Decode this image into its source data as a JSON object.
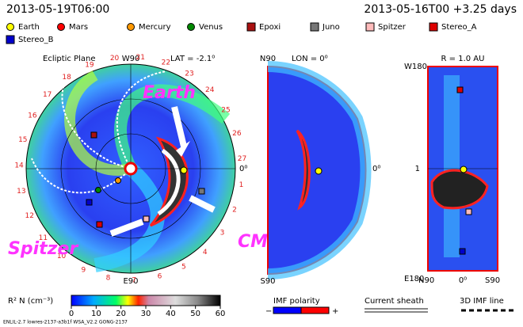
{
  "header": {
    "left": "2013-05-19T06:00",
    "right": "2013-05-16T00 +3.25 days"
  },
  "legend": [
    {
      "label": "Earth",
      "color": "#ffff00",
      "marker": "circle"
    },
    {
      "label": "Mars",
      "color": "#ff0000",
      "marker": "circle"
    },
    {
      "label": "Mercury",
      "color": "#ff9900",
      "marker": "circle"
    },
    {
      "label": "Venus",
      "color": "#008800",
      "marker": "circle"
    },
    {
      "label": "Epoxi",
      "color": "#aa1111",
      "marker": "square"
    },
    {
      "label": "Juno",
      "color": "#777777",
      "marker": "square"
    },
    {
      "label": "Spitzer",
      "color": "#ffbbbb",
      "marker": "square"
    },
    {
      "label": "Stereo_A",
      "color": "#dd0000",
      "marker": "square"
    },
    {
      "label": "Stereo_B",
      "color": "#0000cc",
      "marker": "square"
    }
  ],
  "ecliptic": {
    "title": "Ecliptic Plane",
    "top": "W90",
    "lat": "LAT = -2.1⁰",
    "bottom": "E90",
    "right": "0⁰",
    "longitudes": [
      "27",
      "26",
      "25",
      "24",
      "23",
      "22",
      "21",
      "20",
      "19",
      "18",
      "17",
      "16",
      "15",
      "14",
      "13",
      "12",
      "11",
      "10",
      "9",
      "8",
      "7",
      "6",
      "5",
      "4",
      "3",
      "2",
      "1"
    ]
  },
  "annotations": {
    "earth": "Earth",
    "spitzer": "Spitzer",
    "cme": "CME"
  },
  "meridional": {
    "top": "N90",
    "lon": "LON = 0⁰",
    "bottom": "S90",
    "right": "0⁰"
  },
  "radial": {
    "title": "R = 1.0 AU",
    "top": "W180",
    "bottom": "E180",
    "middle": "1",
    "left": "N90",
    "center": "0⁰",
    "right": "S90"
  },
  "colorbar": {
    "label": "R² N (cm⁻³)",
    "range": [
      0,
      60
    ],
    "ticks": [
      0,
      10,
      20,
      30,
      40,
      50,
      60
    ]
  },
  "keys": {
    "imf": "IMF polarity",
    "minus": "−",
    "plus": "+",
    "sheath": "Current sheath",
    "line": "3D IMF line"
  },
  "footer": "ENLIL-2.7 lowres-2137-a3b1f WSA_V2.2 GONG-2137"
}
